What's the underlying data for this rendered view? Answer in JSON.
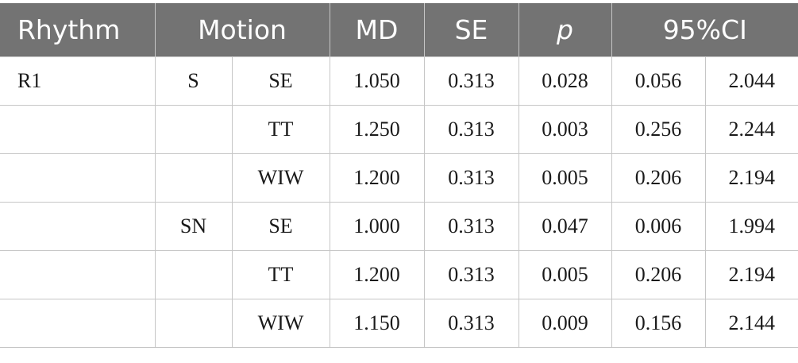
{
  "table": {
    "headers": {
      "rhythm": "Rhythm",
      "motion": "Motion",
      "md": "MD",
      "se": "SE",
      "p": "p",
      "ci": "95%CI"
    },
    "rows": [
      {
        "rhythm": "R1",
        "group": "S",
        "motion": "SE",
        "md": "1.050",
        "se": "0.313",
        "p": "0.028",
        "ci_low": "0.056",
        "ci_high": "2.044"
      },
      {
        "rhythm": "",
        "group": "",
        "motion": "TT",
        "md": "1.250",
        "se": "0.313",
        "p": "0.003",
        "ci_low": "0.256",
        "ci_high": "2.244"
      },
      {
        "rhythm": "",
        "group": "",
        "motion": "WIW",
        "md": "1.200",
        "se": "0.313",
        "p": "0.005",
        "ci_low": "0.206",
        "ci_high": "2.194"
      },
      {
        "rhythm": "",
        "group": "SN",
        "motion": "SE",
        "md": "1.000",
        "se": "0.313",
        "p": "0.047",
        "ci_low": "0.006",
        "ci_high": "1.994"
      },
      {
        "rhythm": "",
        "group": "",
        "motion": "TT",
        "md": "1.200",
        "se": "0.313",
        "p": "0.005",
        "ci_low": "0.206",
        "ci_high": "2.194"
      },
      {
        "rhythm": "",
        "group": "",
        "motion": "WIW",
        "md": "1.150",
        "se": "0.313",
        "p": "0.009",
        "ci_low": "0.156",
        "ci_high": "2.144"
      }
    ]
  }
}
